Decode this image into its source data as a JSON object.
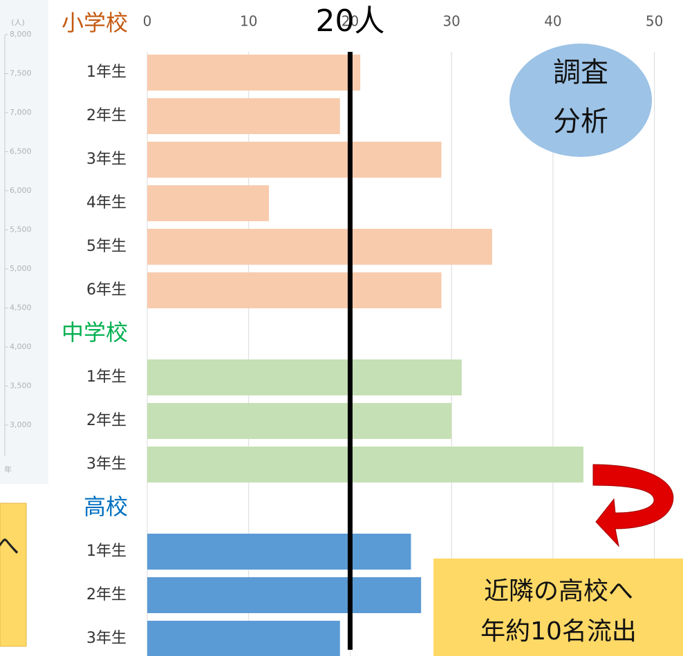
{
  "chart_data": {
    "type": "bar",
    "orientation": "horizontal",
    "xlim": [
      0,
      52
    ],
    "xticks": [
      0,
      10,
      20,
      30,
      40,
      50
    ],
    "grid": true,
    "groups": [
      {
        "name": "小学校",
        "label_color": "#c55a11",
        "color": "#f8cbad",
        "categories": [
          "1年生",
          "2年生",
          "3年生",
          "4年生",
          "5年生",
          "6年生"
        ],
        "values": [
          21,
          19,
          29,
          12,
          34,
          29
        ]
      },
      {
        "name": "中学校",
        "label_color": "#00b050",
        "color": "#c5e0b4",
        "categories": [
          "1年生",
          "2年生",
          "3年生"
        ],
        "values": [
          31,
          30,
          43
        ]
      },
      {
        "name": "高校",
        "label_color": "#0070c0",
        "color": "#5b9bd5",
        "categories": [
          "1年生",
          "2年生",
          "3年生"
        ],
        "values": [
          26,
          27,
          19
        ]
      }
    ],
    "reference_line": {
      "value": 20,
      "label": "20人",
      "color": "#000000"
    },
    "annotations": {
      "bubble": [
        "調査",
        "分析"
      ],
      "note": [
        "近隣の高校へ",
        "年約10名流出"
      ]
    },
    "background_chart": {
      "unit_label": "(人)",
      "x_label": "年",
      "yticks": [
        {
          "value": 8000,
          "label": "8,000"
        },
        {
          "value": 7500,
          "label": "7,500"
        },
        {
          "value": 7000,
          "label": "7,000"
        },
        {
          "value": 6500,
          "label": "6,500"
        },
        {
          "value": 6000,
          "label": "6,000"
        },
        {
          "value": 5500,
          "label": "5,500"
        },
        {
          "value": 5000,
          "label": "5,000"
        },
        {
          "value": 4500,
          "label": "4,500"
        },
        {
          "value": 4000,
          "label": "4,000"
        },
        {
          "value": 3500,
          "label": "3,500"
        },
        {
          "value": 3000,
          "label": "3,000"
        }
      ],
      "partial_text": "へ"
    }
  }
}
